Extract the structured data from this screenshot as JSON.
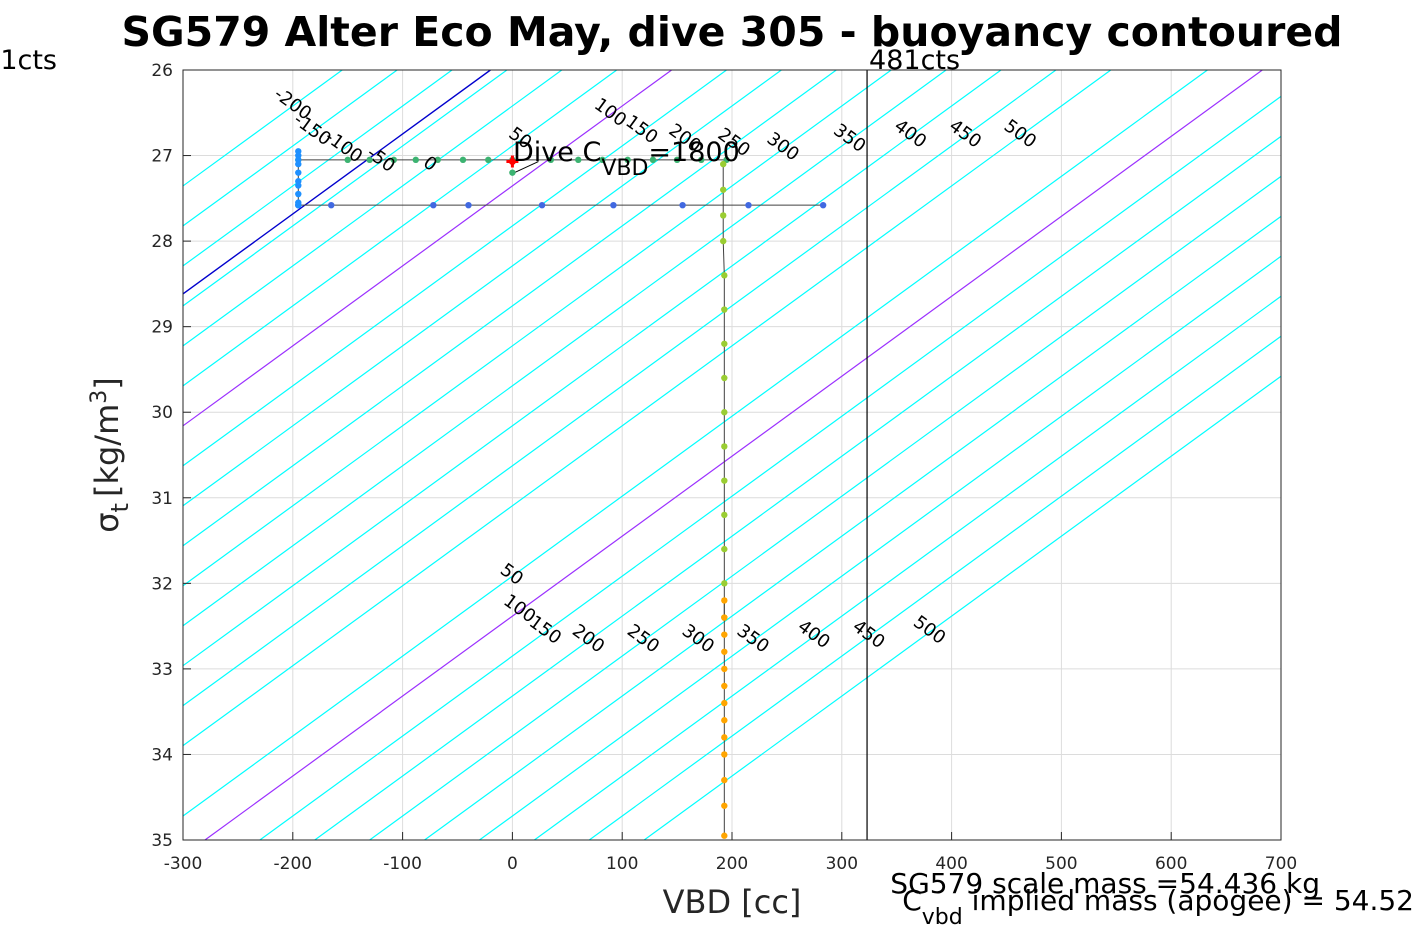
{
  "chart_data": {
    "type": "line",
    "title": "SG579 Alter Eco May, dive 305 - buoyancy contoured",
    "xlabel": "VBD [cc]",
    "ylabel_main": "σ",
    "ylabel_sub": "t",
    "ylabel_unit": "[kg/m",
    "ylabel_sup": "3",
    "ylabel_close": "]",
    "xlim": [
      -300,
      700
    ],
    "ylim": [
      26,
      35
    ],
    "y_reversed": true,
    "grid": true,
    "xticks": [
      -300,
      -200,
      -100,
      0,
      100,
      200,
      300,
      400,
      500,
      600,
      700
    ],
    "yticks": [
      26,
      27,
      28,
      29,
      30,
      31,
      32,
      33,
      34,
      35
    ],
    "xticklabels": [
      "-300",
      "-200",
      "-100",
      "0",
      "100",
      "200",
      "300",
      "400",
      "500",
      "600",
      "700"
    ],
    "yticklabels": [
      "26",
      "27",
      "28",
      "29",
      "30",
      "31",
      "32",
      "33",
      "34",
      "35"
    ],
    "contour_slope_cc_per_sigma": 107,
    "upper_contours": {
      "values": [
        -200,
        -150,
        -100,
        -50,
        0,
        50,
        100,
        150,
        200,
        250,
        300,
        350,
        400,
        450,
        500
      ],
      "labels": [
        "-200",
        "-150",
        "-100",
        "-50",
        "0",
        "50",
        "100",
        "150",
        "200",
        "250",
        "300",
        "350",
        "400",
        "450",
        "500"
      ],
      "origin_x_at_sigma26": [
        -155,
        -105,
        -55,
        -5,
        45,
        95,
        145,
        195,
        245,
        295,
        345,
        395,
        445,
        495,
        545
      ],
      "label_sigma": [
        26.45,
        26.75,
        26.95,
        27.1,
        27.15,
        26.85,
        26.55,
        26.75,
        26.85,
        26.9,
        26.95,
        26.85,
        26.8,
        26.8,
        26.8
      ],
      "colors": [
        "#00ffff",
        "#00ffff",
        "#00ffff",
        "#00ffff",
        "#00ffff",
        "#00ffff",
        "#9b30ff",
        "#00ffff",
        "#00ffff",
        "#00ffff",
        "#00ffff",
        "#00ffff",
        "#00ffff",
        "#00ffff",
        "#00ffff"
      ]
    },
    "lower_contours": {
      "values": [
        50,
        100,
        150,
        200,
        250,
        300,
        350,
        400,
        450,
        500
      ],
      "labels": [
        "50",
        "100",
        "150",
        "200",
        "250",
        "300",
        "350",
        "400",
        "450",
        "500"
      ],
      "x_at_sigma35": [
        -330,
        -280,
        -230,
        -180,
        -130,
        -80,
        -30,
        20,
        70,
        120
      ],
      "label_sigma": [
        31.95,
        32.35,
        32.6,
        32.7,
        32.7,
        32.7,
        32.7,
        32.65,
        32.65,
        32.6
      ],
      "colors": [
        "#00ffff",
        "#9b30ff",
        "#00ffff",
        "#00ffff",
        "#00ffff",
        "#00ffff",
        "#00ffff",
        "#00ffff",
        "#00ffff",
        "#00ffff"
      ]
    },
    "blue_line": {
      "x_at_sigma26": -20,
      "color": "#0000cd"
    },
    "vbd_limit_lines": [
      {
        "label": "1cts",
        "x": -300
      },
      {
        "label": "481cts",
        "x": 323
      }
    ],
    "series": [
      {
        "color": "#3cb371",
        "x": [
          -195,
          -150,
          -130,
          -108,
          -88,
          -68,
          -45,
          -22,
          0,
          35,
          60,
          82,
          105,
          128,
          150,
          172,
          195
        ],
        "y": [
          27.05,
          27.05,
          27.05,
          27.05,
          27.05,
          27.05,
          27.05,
          27.05,
          27.05,
          27.05,
          27.05,
          27.05,
          27.05,
          27.05,
          27.05,
          27.05,
          27.05
        ]
      },
      {
        "color": "#4169e1",
        "x": [
          -195,
          -165,
          -72,
          -40,
          27,
          92,
          155,
          215,
          283
        ],
        "y": [
          27.58,
          27.58,
          27.58,
          27.58,
          27.58,
          27.58,
          27.58,
          27.58,
          27.58
        ]
      },
      {
        "color": "#1e90ff",
        "x": [
          -195,
          -195,
          -195,
          -195,
          -195,
          -195,
          -195,
          -195,
          -195,
          -195
        ],
        "y": [
          26.95,
          27.0,
          27.05,
          27.1,
          27.2,
          27.3,
          27.35,
          27.45,
          27.55,
          27.58
        ]
      },
      {
        "color": "#9acd32",
        "x": [
          192,
          192,
          192,
          192,
          193,
          193,
          193,
          193,
          193,
          193,
          193,
          193,
          193,
          193,
          193
        ],
        "y": [
          27.1,
          27.4,
          27.7,
          28.0,
          28.4,
          28.8,
          29.2,
          29.6,
          30.0,
          30.4,
          30.8,
          31.2,
          31.6,
          32.0,
          32.4
        ]
      },
      {
        "color": "#ffa500",
        "x": [
          193,
          193,
          193,
          193,
          193,
          193,
          193,
          193,
          193,
          193,
          193,
          193,
          193
        ],
        "y": [
          32.2,
          32.4,
          32.6,
          32.8,
          33.0,
          33.2,
          33.4,
          33.6,
          33.8,
          34.0,
          34.3,
          34.6,
          34.95
        ]
      }
    ],
    "dive_marker": {
      "x": 0,
      "y": 27.07,
      "color": "#ff0000"
    },
    "dive_point_extra": {
      "x": 0,
      "y": 27.2,
      "color": "#3cb371"
    },
    "annotation": {
      "prefix": "Dive C",
      "sub": "VBD",
      "suffix": "=1800",
      "x": 0,
      "y": 27.0
    },
    "footer": {
      "line1": "SG579 scale mass =54.436 kg",
      "line2_prefix": "C",
      "line2_sub": "vbd",
      "line2_suffix": " implied mass (apogee) = 54.52"
    }
  }
}
